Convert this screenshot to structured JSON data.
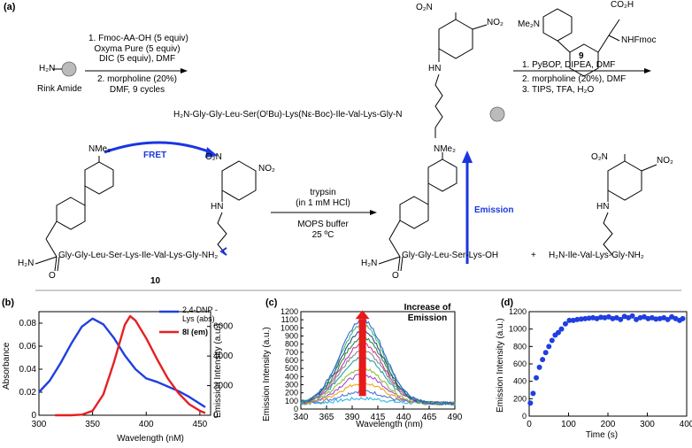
{
  "panel_a": {
    "label": "(a)",
    "start_label": "Rink Amide",
    "h2n": "H₂N",
    "step1": [
      "1. Fmoc-AA-OH (5 equiv)",
      "Oxyma Pure (5 equiv)",
      "DIC (5 equiv), DMF"
    ],
    "step2": [
      "2. morpholine (20%)",
      "DMF, 9 cycles"
    ],
    "resin_peptide": "H₂N-Gly-Gly-Leu-Ser(OᵗBu)-Lys(Nε-Boc)-Ile-Val-Lys-Gly-N",
    "dnp_no2_left": "O₂N",
    "dnp_no2_right": "NO₂",
    "dnp_hn": "HN",
    "cmpd9_label": "9",
    "cmpd9_nme2": "Me₂N",
    "cmpd9_co2h": "CO₂H",
    "cmpd9_nhfmoc": "NHFmoc",
    "step3": [
      "1. PyBOP, DIPEA, DMF",
      "2. morpholine (20%), DMF",
      "3. TIPS, TFA, H₂O"
    ],
    "cmpd10_nme2": "NMe₂",
    "cmpd10_h2n": "H₂N",
    "cmpd10_o": "O",
    "cmpd10_chain": "Gly-Gly-Leu-Ser-Lys-Ile-Val-Lys-Gly-NH₂",
    "cmpd10_label": "10",
    "fret": "FRET",
    "trypsin": [
      "trypsin",
      "(in 1 mM HCl)"
    ],
    "mops": [
      "MOPS buffer",
      "25 ºC"
    ],
    "emission": "Emission",
    "prod1_chain": "Gly-Gly-Leu-Ser-Lys-OH",
    "plus": "+",
    "prod2_chain": "H₂N-Ile-Val-Lys-Gly-NH₂"
  },
  "panel_b": {
    "label": "(b)",
    "xlabel": "Wavelength (nM)",
    "ylabel_left": "Absorbance",
    "ylabel_right": "Emission Intensity (a.u.)",
    "xticks": [
      "300",
      "350",
      "400",
      "450"
    ],
    "yticks_left": [
      "0",
      "0.02",
      "0.04",
      "0.06",
      "0.08"
    ],
    "yticks_right": [
      "0",
      "2000",
      "4000",
      "6000"
    ],
    "legend": [
      {
        "label": "2,4-DNP -Lys (abs)",
        "color": "#1f3fe0"
      },
      {
        "label": "8l (em)",
        "color": "#e62020"
      }
    ]
  },
  "panel_c": {
    "label": "(c)",
    "xlabel": "Wavelength (nm)",
    "ylabel": "Emission Intensity (a.u.)",
    "xticks": [
      "340",
      "365",
      "390",
      "415",
      "440",
      "465",
      "490"
    ],
    "yticks": [
      "0",
      "100",
      "200",
      "300",
      "400",
      "500",
      "600",
      "700",
      "800",
      "900",
      "1000",
      "1100",
      "1200"
    ],
    "annotation": [
      "Increase of",
      "Emission"
    ],
    "curve_colors": [
      "#2bb7e8",
      "#4a7dd6",
      "#f2a51b",
      "#a24bd9",
      "#8fbf3a",
      "#29a3a3",
      "#8a8a8a",
      "#c33da8",
      "#2f8c3f",
      "#2c4b86",
      "#3fbf6f",
      "#3a64d8"
    ]
  },
  "panel_d": {
    "label": "(d)",
    "xlabel": "Time (s)",
    "ylabel": "Emission Intensity (a.u.)",
    "xticks": [
      "0",
      "100",
      "200",
      "300",
      "400"
    ],
    "yticks": [
      "0",
      "200",
      "400",
      "600",
      "800",
      "1000",
      "1200"
    ]
  },
  "chart_data": [
    {
      "type": "line",
      "xlabel": "Wavelength (nM)",
      "ylabel": "Absorbance",
      "xlim": [
        300,
        460
      ],
      "ylim": [
        0,
        0.09
      ],
      "y2lim": [
        0,
        7000
      ],
      "series": [
        {
          "name": "2,4-DNP -Lys (abs)",
          "axis": "left",
          "x": [
            300,
            310,
            320,
            330,
            340,
            350,
            360,
            370,
            380,
            390,
            400,
            410,
            420,
            430,
            440,
            450,
            455
          ],
          "y": [
            0.02,
            0.03,
            0.045,
            0.062,
            0.077,
            0.084,
            0.079,
            0.067,
            0.052,
            0.04,
            0.032,
            0.029,
            0.025,
            0.021,
            0.016,
            0.01,
            0.007
          ]
        },
        {
          "name": "8l (em)",
          "axis": "right",
          "x": [
            315,
            330,
            340,
            350,
            360,
            370,
            380,
            385,
            390,
            400,
            410,
            420,
            430,
            440,
            450,
            455
          ],
          "y": [
            0,
            0,
            40,
            300,
            1400,
            3600,
            6100,
            6700,
            6400,
            5200,
            3800,
            2500,
            1500,
            750,
            300,
            150
          ]
        }
      ]
    },
    {
      "type": "line",
      "xlabel": "Wavelength (nm)",
      "ylabel": "Emission Intensity (a.u.)",
      "xlim": [
        340,
        490
      ],
      "ylim": [
        0,
        1200
      ],
      "peak_x": 400,
      "series": [
        {
          "peak": 130
        },
        {
          "peak": 220
        },
        {
          "peak": 320
        },
        {
          "peak": 420
        },
        {
          "peak": 500
        },
        {
          "peak": 640
        },
        {
          "peak": 720
        },
        {
          "peak": 800
        },
        {
          "peak": 880
        },
        {
          "peak": 960
        },
        {
          "peak": 1040
        },
        {
          "peak": 1100
        }
      ]
    },
    {
      "type": "scatter",
      "xlabel": "Time (s)",
      "ylabel": "Emission Intensity (a.u.)",
      "xlim": [
        0,
        400
      ],
      "ylim": [
        0,
        1200
      ],
      "x": [
        3,
        10,
        18,
        26,
        34,
        42,
        50,
        58,
        66,
        74,
        82,
        92,
        102,
        112,
        122,
        132,
        142,
        152,
        162,
        172,
        182,
        192,
        202,
        212,
        222,
        232,
        242,
        252,
        262,
        272,
        282,
        292,
        302,
        312,
        322,
        332,
        342,
        352,
        362,
        372,
        382,
        390
      ],
      "y": [
        150,
        260,
        440,
        560,
        650,
        730,
        800,
        870,
        930,
        960,
        1000,
        1060,
        1100,
        1100,
        1110,
        1115,
        1120,
        1125,
        1130,
        1120,
        1135,
        1130,
        1140,
        1120,
        1130,
        1110,
        1145,
        1130,
        1150,
        1110,
        1130,
        1140,
        1120,
        1130,
        1115,
        1120,
        1130,
        1110,
        1140,
        1120,
        1100,
        1120
      ]
    }
  ]
}
